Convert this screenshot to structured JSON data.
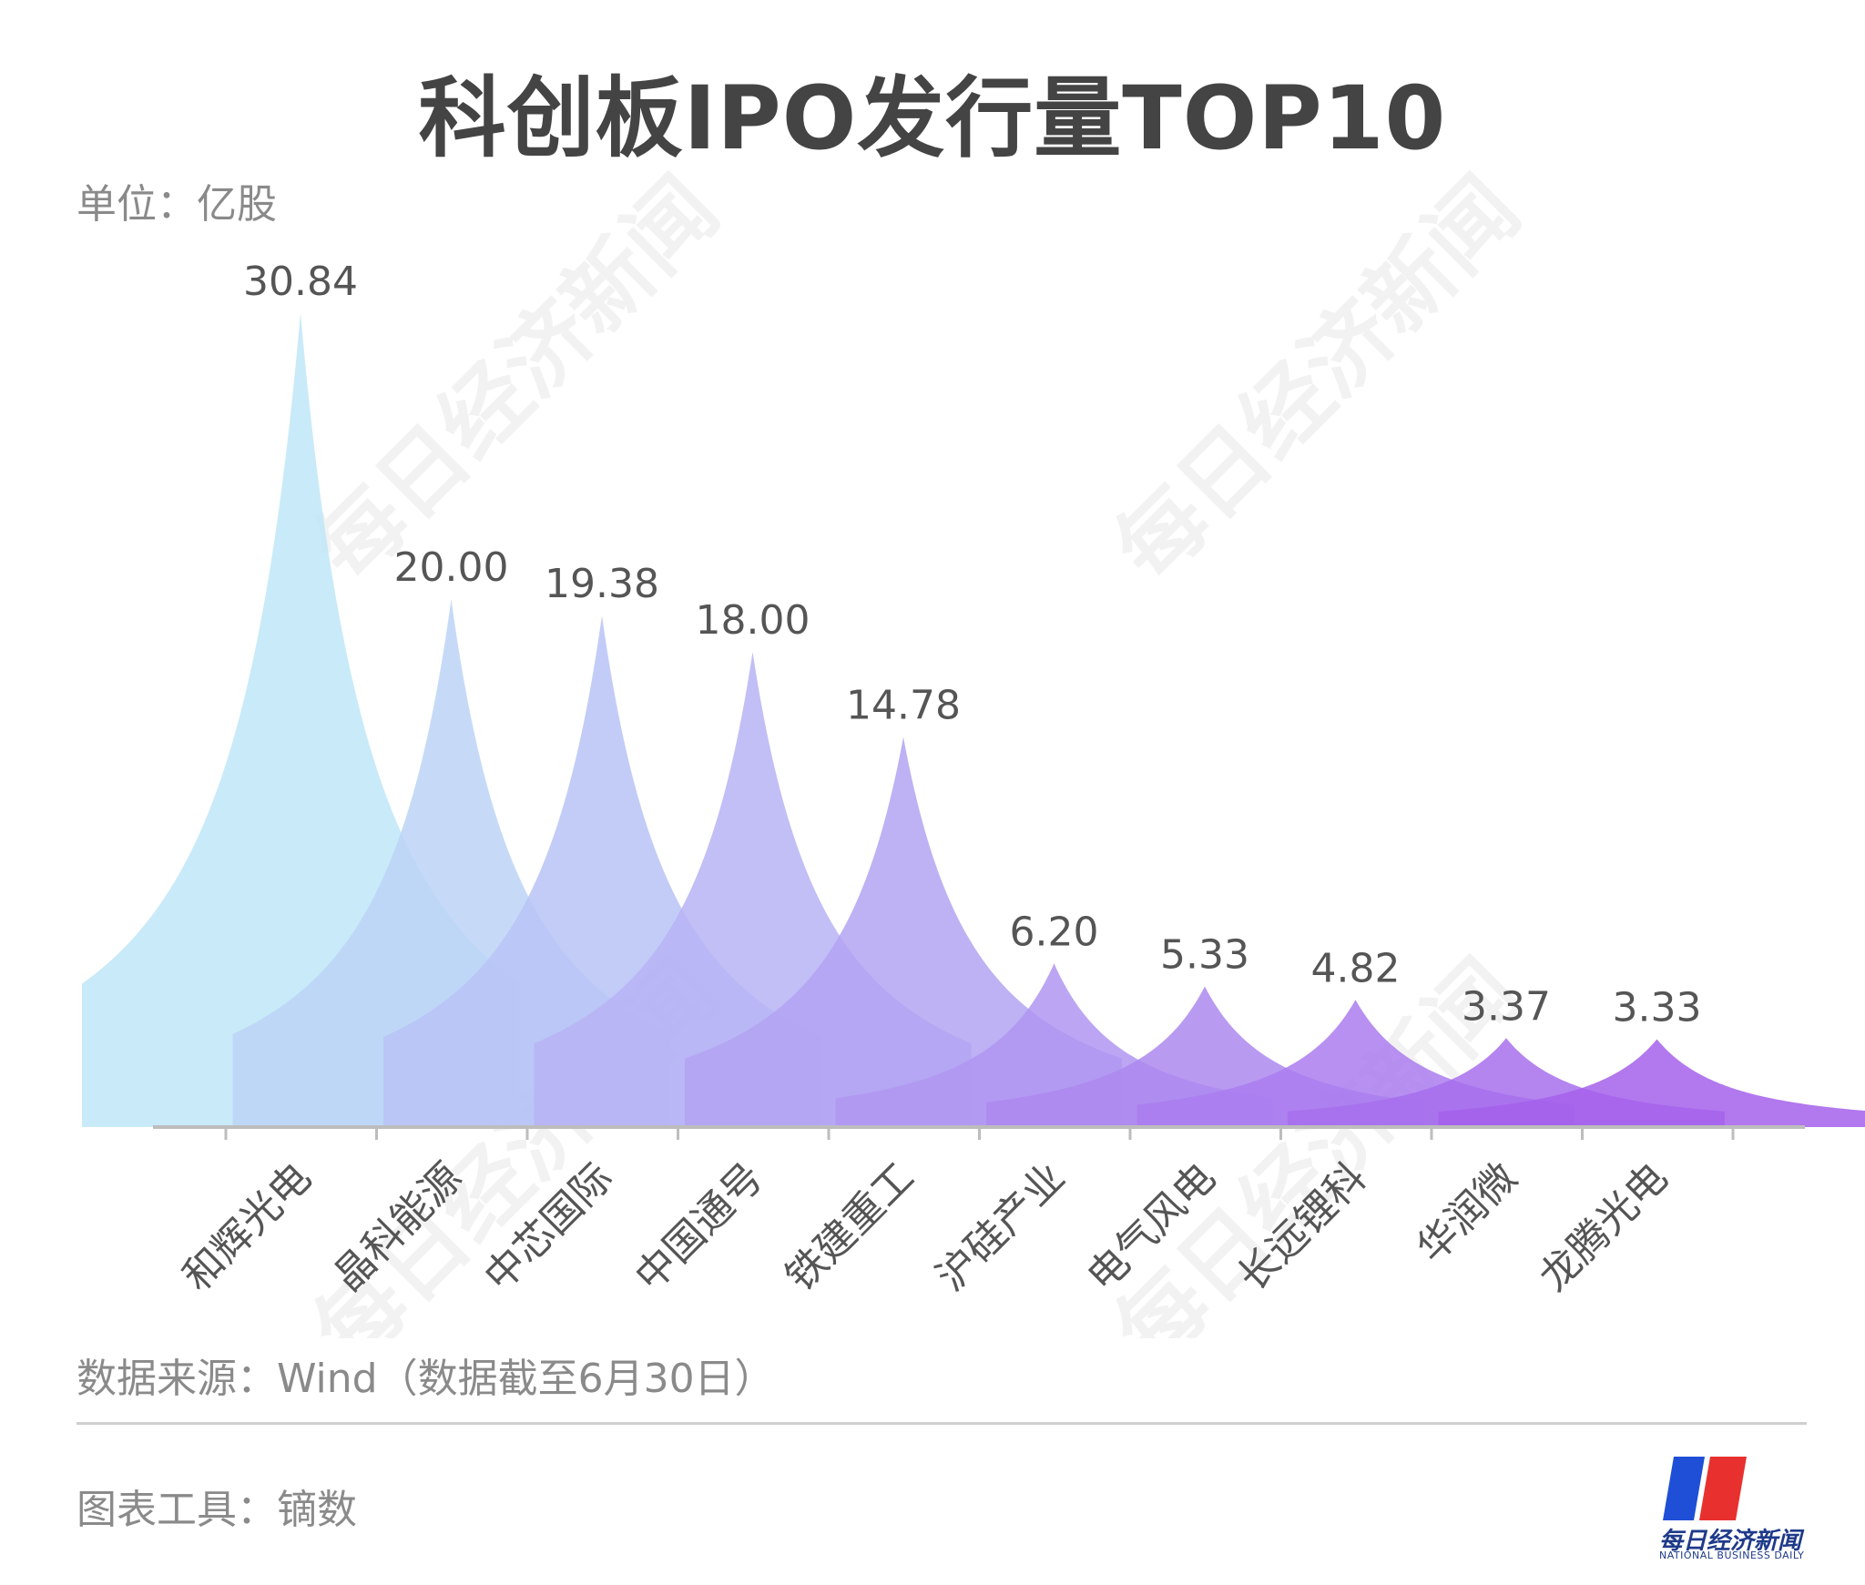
{
  "page": {
    "title": "科创板IPO发行量TOP10"
  },
  "unit_label": "单位：亿股",
  "source_label": "数据来源：Wind（数据截至6月30日）",
  "tool_label": "图表工具：镝数",
  "watermark_text": "每日经济新闻",
  "logo": {
    "name": "每日经济新闻",
    "en": "NATIONAL BUSINESS DAILY",
    "colors": [
      "#1f4fd6",
      "#e8312f"
    ]
  },
  "chart_data": {
    "type": "area",
    "title": "科创板IPO发行量TOP10",
    "ylabel": "单位：亿股",
    "ylim": [
      0,
      30.84
    ],
    "categories": [
      "和辉光电",
      "晶科能源",
      "中芯国际",
      "中国通号",
      "铁建重工",
      "沪硅产业",
      "电气风电",
      "长远锂科",
      "华润微",
      "龙腾光电"
    ],
    "values": [
      30.84,
      20.0,
      19.38,
      18.0,
      14.78,
      6.2,
      5.33,
      4.82,
      3.37,
      3.33
    ],
    "value_labels": [
      "30.84",
      "20.00",
      "19.38",
      "18.00",
      "14.78",
      "6.20",
      "5.33",
      "4.82",
      "3.37",
      "3.33"
    ],
    "colors": [
      "#bfe6f7",
      "#bcd4f7",
      "#b9c3f6",
      "#b7b3f4",
      "#b3a3f2",
      "#b096f1",
      "#ad88ef",
      "#aa7cee",
      "#a76fec",
      "#a560eb"
    ]
  }
}
